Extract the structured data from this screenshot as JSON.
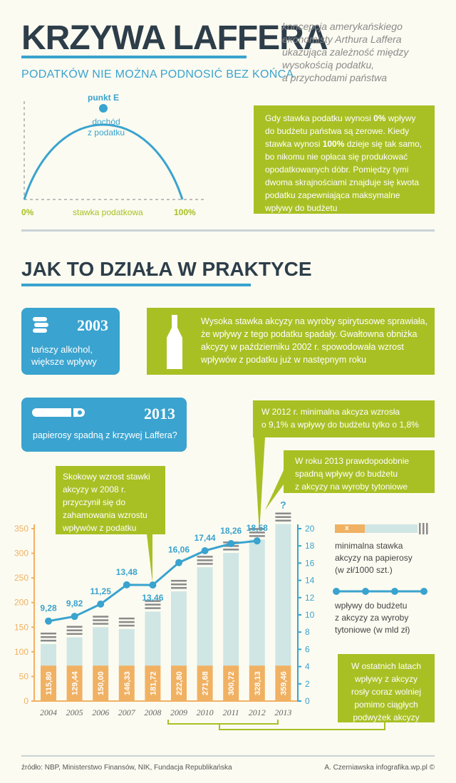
{
  "header": {
    "title": "KRZYWA LAFFERA",
    "subtitle": "PODATKÓW NIE MOŻNA PODNOSIĆ BEZ KOŃCA",
    "intro_lines": [
      "koncepcja amerykańskiego",
      "ekonomisty Arthura Laffera",
      "ukazująca zależność między",
      "wysokością podatku,",
      "a przychodami państwa"
    ]
  },
  "laffer": {
    "peak_label": "punkt E",
    "peak_desc_lines": [
      "dochód",
      "z podatku"
    ],
    "x_start": "0%",
    "x_end": "100%",
    "x_axis": "stawka podatkowa",
    "explanation_lines": [
      "Gdy stawka podatku wynosi 0% wpływy",
      "do budżetu państwa są zerowe. Kiedy",
      "stawka wynosi 100% dzieje się tak samo,",
      "bo nikomu nie opłaca się produkować",
      "opodatkowanych dóbr. Pomiędzy tymi",
      "dwoma skrajnościami znajduje się kwota",
      "podatku zapewniająca maksymalne",
      "wpływy do budżetu"
    ]
  },
  "practice": {
    "title": "JAK TO DZIAŁA W PRAKTYCE",
    "alcohol": {
      "year": "2003",
      "lines": [
        "tańszy alkohol,",
        "większe wpływy"
      ],
      "text_lines": [
        "Wysoka stawka akcyzy na wyroby spirytusowe sprawiała,",
        "że wpływy z tego podatku spadały. Gwałtowna obniżka",
        "akcyzy w październiku 2002 r. spowodowała wzrost",
        "wpływów z podatku już w następnym roku"
      ]
    },
    "cigarettes": {
      "year": "2013",
      "line": "papierosy spadną z krzywej Laffera?"
    },
    "callouts": {
      "c2008": [
        "Skokowy wzrost stawki",
        "akcyzy w 2008 r.",
        "przyczynił się do",
        "zahamowania wzrostu",
        "wpływów z podatku"
      ],
      "c2012": [
        "W 2012 r. minimalna akcyza wzrosła",
        "o 9,1% a wpływy do budżetu tylko o 1,8%"
      ],
      "c2013": [
        "W roku 2013 prawdopodobnie",
        "spadną wpływy do budżetu",
        "z akcyzy na wyroby tytoniowe"
      ],
      "recent": [
        "W ostatnich latach",
        "wpływy z akcyzy",
        "rosły coraz wolniej",
        "pomimo ciągłych",
        "podwyżek akcyzy"
      ]
    },
    "legend": {
      "bar_marker": "x",
      "bar_label_lines": [
        "minimalna stawka",
        "akcyzy na papierosy",
        "(w zł/1000 szt.)"
      ],
      "line_label_lines": [
        "wpływy do budżetu",
        "z akcyzy za wyroby",
        "tytoniowe (w mld zł)"
      ]
    }
  },
  "chart_data": {
    "type": "bar+line",
    "categories": [
      "2004",
      "2005",
      "2006",
      "2007",
      "2008",
      "2009",
      "2010",
      "2011",
      "2012",
      "2013"
    ],
    "series": [
      {
        "name": "minimalna stawka akcyzy na papierosy (w zł/1000 szt.)",
        "axis": "left",
        "values": [
          115.8,
          129.44,
          150.0,
          146.33,
          181.72,
          222.8,
          271.68,
          300.72,
          328.13,
          359.46
        ],
        "labels": [
          "115,80",
          "129,44",
          "150,00",
          "146,33",
          "181,72",
          "222,80",
          "271,68",
          "300,72",
          "328,13",
          "359,46"
        ]
      },
      {
        "name": "wpływy do budżetu z akcyzy za wyroby tytoniowe (w mld zł)",
        "axis": "right",
        "values": [
          9.28,
          9.82,
          11.25,
          13.48,
          13.46,
          16.06,
          17.44,
          18.26,
          18.58,
          null
        ],
        "labels": [
          "9,28",
          "9,82",
          "11,25",
          "13,48",
          "13,46",
          "16,06",
          "17,44",
          "18,26",
          "18,58",
          "?"
        ]
      }
    ],
    "left_ticks": [
      "0",
      "50",
      "100",
      "150",
      "200",
      "250",
      "300",
      "350"
    ],
    "right_ticks": [
      "0",
      "2",
      "4",
      "6",
      "8",
      "10",
      "12",
      "14",
      "16",
      "18",
      "20"
    ],
    "ylim_left": [
      0,
      350
    ],
    "ylim_right": [
      0,
      20
    ],
    "colors": {
      "bar_base": "#f0b163",
      "bar_fill": "#cfe6e4",
      "line": "#3aa3cf",
      "stripes": "#8a8a8a"
    }
  },
  "footer": {
    "source": "źródło: NBP, Ministerstwo Finansów, NIK, Fundacja Republikańska",
    "author": "A. Czerniawska infografika.wp.pl ©"
  },
  "colors": {
    "accent_blue": "#3aa3cf",
    "accent_green": "#a9c024",
    "dark": "#2d3e4a",
    "orange": "#f0b163"
  }
}
